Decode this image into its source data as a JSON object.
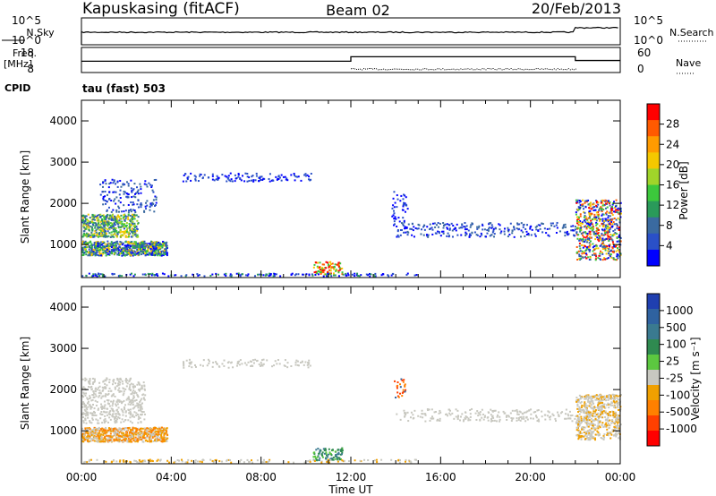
{
  "header": {
    "station": "Kapuskasing (fitACF)",
    "beam": "Beam 02",
    "date": "20/Feb/2013"
  },
  "side_labels": {
    "nsky": "N.Sky",
    "freq": "Freq.",
    "freq_unit": "[MHz]",
    "cpid": "CPID",
    "nsearch": "N.Search",
    "nave": "Nave"
  },
  "mode_label": "tau (fast) 503",
  "chart_data": [
    {
      "type": "line",
      "id": "nsky_nsearch",
      "left_ticks": [
        "10^5",
        "10^0"
      ],
      "right_ticks": [
        "10^5",
        "10^0"
      ],
      "series": [
        {
          "name": "N.Sky",
          "style": "solid"
        },
        {
          "name": "N.Search",
          "style": "dotted"
        }
      ]
    },
    {
      "type": "line",
      "id": "freq_nave",
      "left_ticks": [
        "18",
        "8"
      ],
      "right_ticks": [
        "60",
        "0"
      ],
      "ylim_left": [
        8,
        18
      ],
      "ylim_right": [
        0,
        60
      ],
      "series": [
        {
          "name": "Freq.",
          "style": "solid",
          "x": [
            0,
            12,
            12,
            22,
            22,
            24
          ],
          "y": [
            12.5,
            12.5,
            14.3,
            14.3,
            12.8,
            12.8
          ]
        },
        {
          "name": "Nave",
          "style": "dotted"
        }
      ]
    },
    {
      "type": "heatmap",
      "id": "power",
      "xlabel": "Time UT",
      "ylabel": "Slant Range [km]",
      "xlim": [
        0,
        24
      ],
      "ylim": [
        200,
        4500
      ],
      "xticks": [
        "00:00",
        "04:00",
        "08:00",
        "12:00",
        "16:00",
        "20:00",
        "00:00"
      ],
      "yticks": [
        1000,
        2000,
        3000,
        4000
      ],
      "colorbar": {
        "label": "Power [dB]",
        "ticks": [
          "28",
          "24",
          "20",
          "16",
          "12",
          "8",
          "4"
        ],
        "colors": [
          "#ff0000",
          "#ff5a00",
          "#ff9b00",
          "#f5c800",
          "#a0d42a",
          "#3cc83c",
          "#2a9a5a",
          "#3a6aa0",
          "#2a50c8",
          "#0000ff"
        ]
      }
    },
    {
      "type": "heatmap",
      "id": "velocity",
      "xlabel": "Time UT",
      "ylabel": "Slant Range [km]",
      "xlim": [
        0,
        24
      ],
      "ylim": [
        200,
        4500
      ],
      "xticks": [
        "00:00",
        "04:00",
        "08:00",
        "12:00",
        "16:00",
        "20:00",
        "00:00"
      ],
      "yticks": [
        1000,
        2000,
        3000,
        4000
      ],
      "colorbar": {
        "label": "Velocity [m s⁻¹]",
        "ticks": [
          "1000",
          "500",
          "100",
          "25",
          "-25",
          "-100",
          "-500",
          "-1000"
        ],
        "colors": [
          "#1f3fb0",
          "#2f62a0",
          "#3a7a90",
          "#2f8a50",
          "#5cc840",
          "#c8c8c0",
          "#f0a000",
          "#ff8000",
          "#ff4000",
          "#ff0000"
        ]
      }
    }
  ],
  "xaxis_title": "Time UT"
}
